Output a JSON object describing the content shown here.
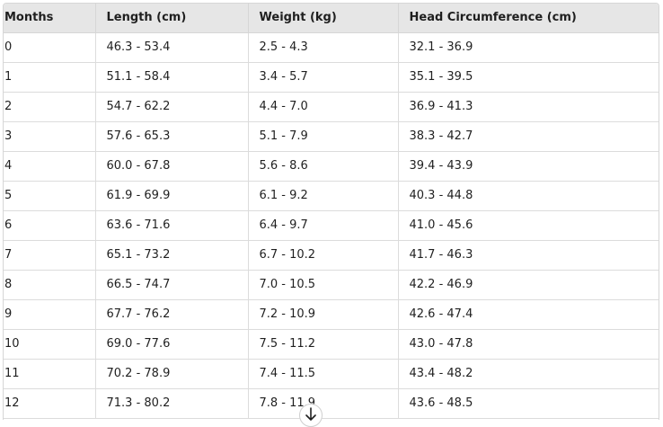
{
  "table": {
    "headers": [
      "Months",
      "Length (cm)",
      "Weight (kg)",
      "Head Circumference (cm)"
    ],
    "rows": [
      [
        "0",
        "46.3 - 53.4",
        "2.5 - 4.3",
        "32.1 - 36.9"
      ],
      [
        "1",
        "51.1 - 58.4",
        "3.4 - 5.7",
        "35.1 - 39.5"
      ],
      [
        "2",
        "54.7 - 62.2",
        "4.4 - 7.0",
        "36.9 - 41.3"
      ],
      [
        "3",
        "57.6 - 65.3",
        "5.1 - 7.9",
        "38.3 - 42.7"
      ],
      [
        "4",
        "60.0 - 67.8",
        "5.6 - 8.6",
        "39.4 - 43.9"
      ],
      [
        "5",
        "61.9 - 69.9",
        "6.1 - 9.2",
        "40.3 - 44.8"
      ],
      [
        "6",
        "63.6 - 71.6",
        "6.4 - 9.7",
        "41.0 - 45.6"
      ],
      [
        "7",
        "65.1 - 73.2",
        "6.7 - 10.2",
        "41.7 - 46.3"
      ],
      [
        "8",
        "66.5 - 74.7",
        "7.0 - 10.5",
        "42.2 - 46.9"
      ],
      [
        "9",
        "67.7 - 76.2",
        "7.2 - 10.9",
        "42.6 - 47.4"
      ],
      [
        "10",
        "69.0 - 77.6",
        "7.5 - 11.2",
        "43.0 - 47.8"
      ],
      [
        "11",
        "70.2 - 78.9",
        "7.4 - 11.5",
        "43.4 - 48.2"
      ],
      [
        "12",
        "71.3 - 80.2",
        "7.8 - 11.9",
        "43.6 - 48.5"
      ]
    ]
  },
  "scroll_button": {
    "icon": "arrow-down-icon"
  }
}
